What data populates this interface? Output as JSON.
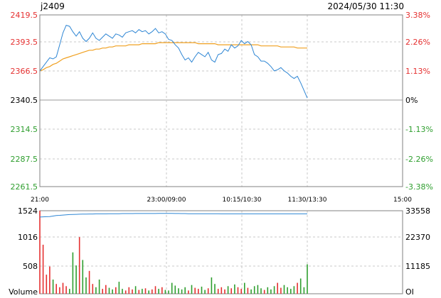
{
  "header": {
    "symbol": "j2409",
    "timestamp": "2024/05/30 11:30"
  },
  "colors": {
    "price_line": "#2e86d4",
    "avg_line": "#f0a020",
    "oi_line": "#2e86d4",
    "up": "#e53030",
    "down": "#2e9e2e",
    "grid": "#c8c8c8",
    "axis": "#808080",
    "text": "#000000"
  },
  "chart_data": [
    {
      "type": "line",
      "title": "",
      "price_ticks": [
        "2419.5",
        "2393.5",
        "2366.5",
        "2340.5",
        "2314.5",
        "2287.5",
        "2261.5"
      ],
      "pct_ticks": [
        "3.38%",
        "2.26%",
        "1.13%",
        "0%",
        "-1.13%",
        "-2.26%",
        "-3.38%"
      ],
      "time_ticks": [
        "21:00",
        "23:00/09:00",
        "10:15/10:30",
        "11:30/13:30",
        "15:00"
      ],
      "ylim": [
        2261.5,
        2419.5
      ],
      "reference": 2340.5,
      "grid": true,
      "series": [
        {
          "values": [
            2368,
            2372,
            2376,
            2380,
            2379,
            2381,
            2392,
            2403,
            2410,
            2409,
            2404,
            2400,
            2404,
            2398,
            2395,
            2398,
            2403,
            2398,
            2396,
            2399,
            2402,
            2400,
            2398,
            2402,
            2401,
            2399,
            2403,
            2404,
            2405,
            2403,
            2406,
            2404,
            2405,
            2402,
            2404,
            2407,
            2403,
            2404,
            2402,
            2397,
            2396,
            2392,
            2389,
            2383,
            2378,
            2380,
            2376,
            2381,
            2385,
            2383,
            2381,
            2385,
            2378,
            2376,
            2383,
            2384,
            2388,
            2386,
            2392,
            2389,
            2391,
            2396,
            2393,
            2395,
            2392,
            2383,
            2381,
            2377,
            2377,
            2375,
            2372,
            2368,
            2369,
            2371,
            2368,
            2366,
            2363,
            2361,
            2363,
            2357,
            2350,
            2343
          ]
        },
        {
          "values": [
            2368,
            2369,
            2371,
            2372,
            2374,
            2375,
            2377,
            2379,
            2380,
            2381,
            2382,
            2383,
            2384,
            2385,
            2386,
            2387,
            2387,
            2388,
            2388,
            2389,
            2389,
            2390,
            2390,
            2391,
            2391,
            2391,
            2391,
            2392,
            2392,
            2392,
            2392,
            2393,
            2393,
            2393,
            2393,
            2393,
            2394,
            2394,
            2394,
            2394,
            2394,
            2394,
            2394,
            2394,
            2394,
            2394,
            2394,
            2394,
            2393,
            2393,
            2393,
            2393,
            2393,
            2393,
            2392,
            2392,
            2392,
            2392,
            2392,
            2392,
            2392,
            2392,
            2392,
            2392,
            2392,
            2392,
            2392,
            2391,
            2391,
            2391,
            2391,
            2391,
            2391,
            2390,
            2390,
            2390,
            2390,
            2390,
            2389,
            2389,
            2389,
            2389
          ]
        }
      ]
    },
    {
      "type": "bar",
      "title": "",
      "ylabel": "Volume",
      "right_label": "OI",
      "vol_ticks": [
        "1524",
        "1016",
        "508"
      ],
      "oi_ticks": [
        "33558",
        "22370",
        "11185"
      ],
      "ylim": [
        0,
        1524
      ],
      "series": [
        {
          "values": [
            1524,
            900,
            350,
            500,
            260,
            180,
            120,
            200,
            140,
            90,
            760,
            520,
            1040,
            620,
            300,
            420,
            180,
            120,
            260,
            90,
            160,
            110,
            80,
            120,
            220,
            90,
            60,
            120,
            80,
            140,
            70,
            90,
            100,
            60,
            80,
            140,
            90,
            120,
            70,
            60,
            200,
            150,
            100,
            80,
            120,
            60,
            160,
            110,
            90,
            130,
            70,
            100,
            300,
            180,
            90,
            120,
            80,
            140,
            100,
            170,
            120,
            90,
            200,
            110,
            80,
            140,
            160,
            100,
            70,
            120,
            80,
            140,
            200,
            110,
            160,
            120,
            90,
            140,
            200,
            280,
            120,
            540
          ]
        },
        {
          "values": [
            31000,
            31100,
            31150,
            31200,
            31400,
            31600,
            31700,
            31800,
            31900,
            32000,
            32050,
            32100,
            32150,
            32200,
            32200,
            32250,
            32250,
            32300,
            32300,
            32300,
            32300,
            32350,
            32350,
            32350,
            32350,
            32400,
            32400,
            32400,
            32400,
            32450,
            32450,
            32450,
            32450,
            32450,
            32450,
            32450,
            32500,
            32500,
            32500,
            32500,
            32500,
            32450,
            32450,
            32400,
            32400,
            32350,
            32350,
            32350,
            32350,
            32350,
            32350,
            32350,
            32350,
            32350,
            32350,
            32300,
            32300,
            32300,
            32300,
            32300,
            32300,
            32300,
            32300,
            32300,
            32300,
            32300,
            32300,
            32300,
            32300,
            32300,
            32300,
            32300,
            32300,
            32300,
            32300,
            32300,
            32300,
            32300,
            32300,
            32300,
            32300,
            32300
          ]
        }
      ]
    }
  ]
}
